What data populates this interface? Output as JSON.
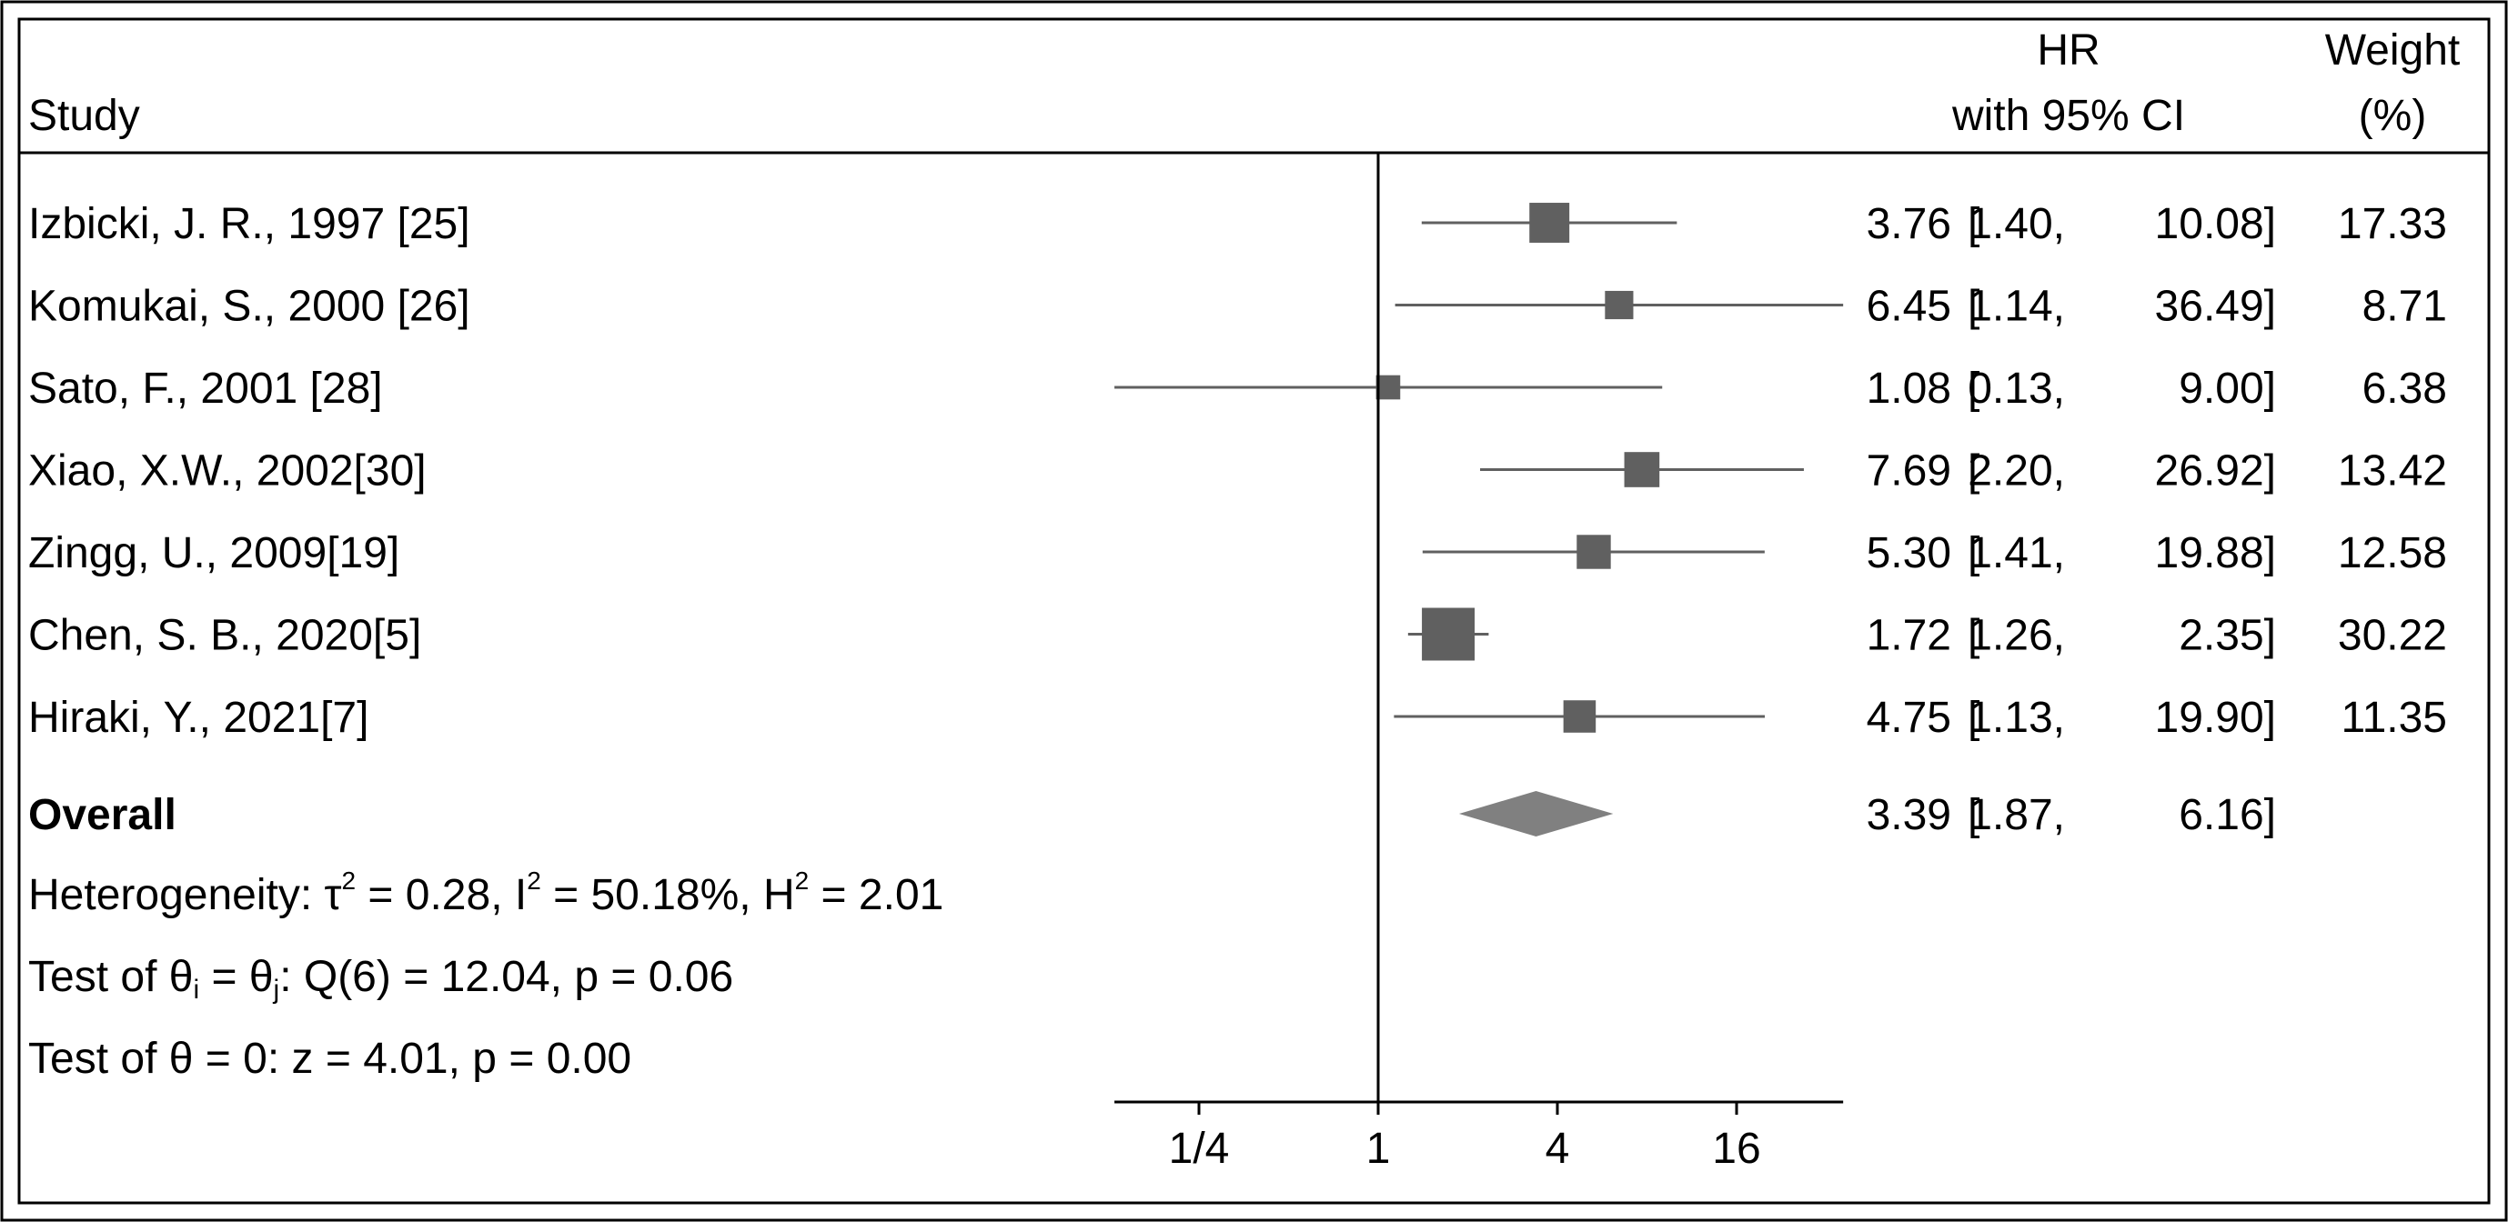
{
  "chart_data": {
    "type": "forest",
    "header": {
      "study": "Study",
      "effect_line1": "HR",
      "effect_line2": "with 95% CI",
      "weight_line1": "Weight",
      "weight_line2": "(%)"
    },
    "studies": [
      {
        "label": "Izbicki, J. R., 1997 [25]",
        "hr": 3.76,
        "lo": 1.4,
        "hi": 10.08,
        "weight": 17.33,
        "hr_text": "3.76",
        "lo_text": "1.40,",
        "hi_text": "10.08]",
        "weight_text": "17.33"
      },
      {
        "label": "Komukai, S., 2000 [26]",
        "hr": 6.45,
        "lo": 1.14,
        "hi": 36.49,
        "weight": 8.71,
        "hr_text": "6.45",
        "lo_text": "1.14,",
        "hi_text": "36.49]",
        "weight_text": "8.71"
      },
      {
        "label": "Sato, F., 2001 [28]",
        "hr": 1.08,
        "lo": 0.13,
        "hi": 9.0,
        "weight": 6.38,
        "hr_text": "1.08",
        "lo_text": "0.13,",
        "hi_text": "9.00]",
        "weight_text": "6.38"
      },
      {
        "label": "Xiao, X.W., 2002[30]",
        "hr": 7.69,
        "lo": 2.2,
        "hi": 26.92,
        "weight": 13.42,
        "hr_text": "7.69",
        "lo_text": "2.20,",
        "hi_text": "26.92]",
        "weight_text": "13.42"
      },
      {
        "label": "Zingg, U., 2009[19]",
        "hr": 5.3,
        "lo": 1.41,
        "hi": 19.88,
        "weight": 12.58,
        "hr_text": "5.30",
        "lo_text": "1.41,",
        "hi_text": "19.88]",
        "weight_text": "12.58"
      },
      {
        "label": "Chen, S. B., 2020[5]",
        "hr": 1.72,
        "lo": 1.26,
        "hi": 2.35,
        "weight": 30.22,
        "hr_text": "1.72",
        "lo_text": "1.26,",
        "hi_text": "2.35]",
        "weight_text": "30.22"
      },
      {
        "label": "Hiraki, Y., 2021[7]",
        "hr": 4.75,
        "lo": 1.13,
        "hi": 19.9,
        "weight": 11.35,
        "hr_text": "4.75",
        "lo_text": "1.13,",
        "hi_text": "19.90]",
        "weight_text": "11.35"
      }
    ],
    "overall": {
      "label": "Overall",
      "hr": 3.39,
      "lo": 1.87,
      "hi": 6.16,
      "hr_text": "3.39",
      "lo_text": "1.87,",
      "hi_text": "6.16]"
    },
    "bracket_open": "[",
    "stats": {
      "heterogeneity": {
        "prefix": "Heterogeneity: τ",
        "sup1": "2",
        "mid1": " = 0.28, I",
        "sup2": "2",
        "mid2": " = 50.18%, H",
        "sup3": "2",
        "end": " = 2.01"
      },
      "test_theta": {
        "prefix": "Test of θ",
        "sub1": "i",
        "mid": " = θ",
        "sub2": "j",
        "end": ": Q(6) = 12.04, p = 0.06"
      },
      "test_zero": "Test of θ = 0: z = 4.01, p = 0.00"
    },
    "x_axis": {
      "scale": "log",
      "range": [
        0.13,
        36.49
      ],
      "ticks": [
        0.25,
        1,
        4,
        16
      ],
      "tick_labels": [
        "1/4",
        "1",
        "4",
        "16"
      ],
      "reference_line": 1
    },
    "colors": {
      "marker": "#606060",
      "diamond": "#808080",
      "ci_line": "#606060",
      "frame": "#000000"
    }
  }
}
